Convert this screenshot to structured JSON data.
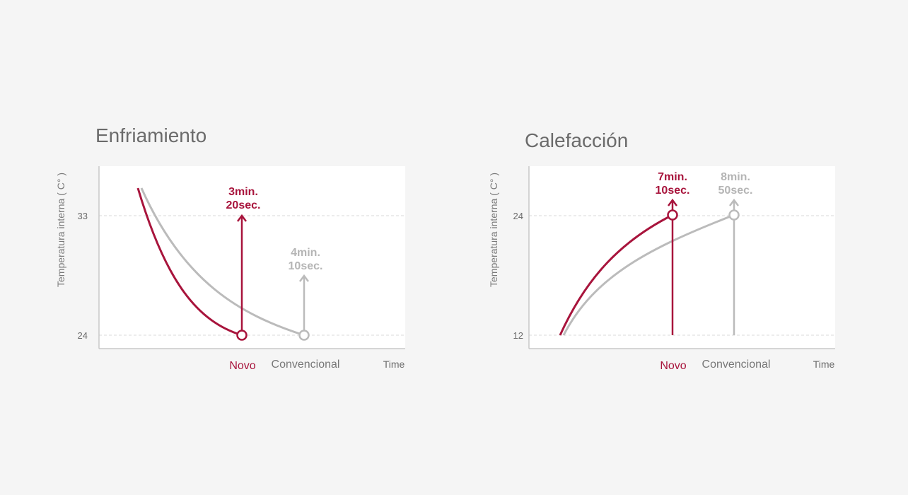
{
  "colors": {
    "background": "#f5f5f5",
    "plot_bg": "#ffffff",
    "new": "#a8143c",
    "conventional": "#bbbbbb",
    "axis": "#c8c8c8",
    "text": "#6b6b6b"
  },
  "chart_data": [
    {
      "type": "line",
      "title": "Enfriamiento",
      "ylabel": "Temperatura interna ( C° )",
      "xlabel": "Time",
      "yticks": [
        33,
        24
      ],
      "series": [
        {
          "name": "Novo",
          "time_label": [
            "3min.",
            "20sec."
          ],
          "start_temp": 35,
          "end_temp": 24
        },
        {
          "name": "Convencional",
          "time_label": [
            "4min.",
            "10sec."
          ],
          "start_temp": 35,
          "end_temp": 24
        }
      ]
    },
    {
      "type": "line",
      "title": "Calefacción",
      "ylabel": "Temperatura interna ( C° )",
      "xlabel": "Time",
      "yticks": [
        24,
        12
      ],
      "series": [
        {
          "name": "Novo",
          "time_label": [
            "7min.",
            "10sec."
          ],
          "start_temp": 12,
          "end_temp": 24
        },
        {
          "name": "Convencional",
          "time_label": [
            "8min.",
            "50sec."
          ],
          "start_temp": 12,
          "end_temp": 24
        }
      ]
    }
  ]
}
